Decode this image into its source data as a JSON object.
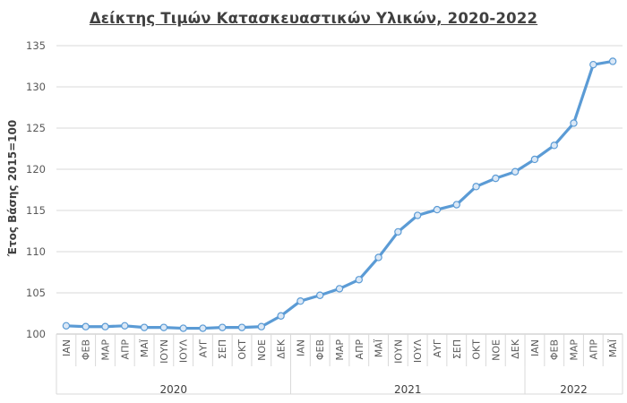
{
  "chart_data": {
    "type": "line",
    "title": "Δείκτης Τιμών Κατασκευαστικών Υλικών, 2020-2022",
    "ylabel": "Έτος Βάσης 2015=100",
    "xlabel": "",
    "ylim": [
      100,
      135
    ],
    "yticks": [
      "100",
      "105",
      "110",
      "115",
      "120",
      "125",
      "130",
      "135"
    ],
    "grid": true,
    "legend": "none",
    "line_color": "#5b9bd5",
    "years": [
      {
        "label": "2020",
        "count": 12
      },
      {
        "label": "2021",
        "count": 12
      },
      {
        "label": "2022",
        "count": 5
      }
    ],
    "categories": [
      "ΙΑΝ",
      "ΦΕΒ",
      "ΜΑΡ",
      "ΑΠΡ",
      "ΜΑΪ",
      "ΙΟΥΝ",
      "ΙΟΥΛ",
      "ΑΥΓ",
      "ΣΕΠ",
      "ΟΚΤ",
      "ΝΟΕ",
      "ΔΕΚ",
      "ΙΑΝ",
      "ΦΕΒ",
      "ΜΑΡ",
      "ΑΠΡ",
      "ΜΑΪ",
      "ΙΟΥΝ",
      "ΙΟΥΛ",
      "ΑΥΓ",
      "ΣΕΠ",
      "ΟΚΤ",
      "ΝΟΕ",
      "ΔΕΚ",
      "ΙΑΝ",
      "ΦΕΒ",
      "ΜΑΡ",
      "ΑΠΡ",
      "ΜΑΪ"
    ],
    "values": [
      101.0,
      100.9,
      100.9,
      101.0,
      100.8,
      100.8,
      100.7,
      100.7,
      100.8,
      100.8,
      100.9,
      102.2,
      104.0,
      104.7,
      105.5,
      106.6,
      109.3,
      112.4,
      114.4,
      115.1,
      115.7,
      117.9,
      118.9,
      119.7,
      121.2,
      122.9,
      125.6,
      132.7,
      133.1
    ]
  }
}
